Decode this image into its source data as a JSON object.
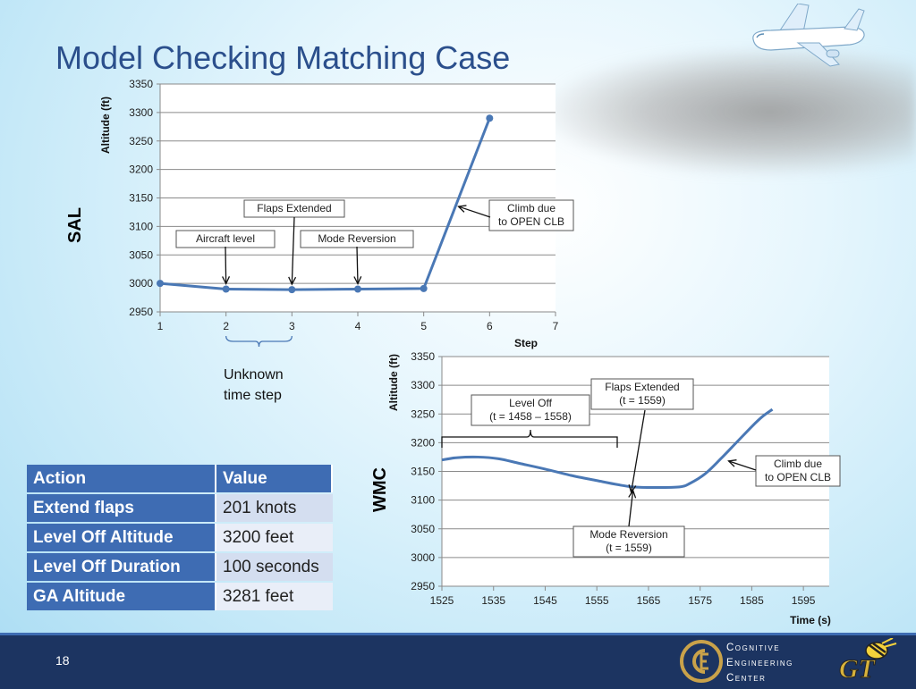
{
  "slide": {
    "title": "Model Checking Matching Case",
    "page_number": "18"
  },
  "logos": {
    "cec_lines": [
      "Cognitive",
      "Engineering",
      "Center"
    ],
    "gt": "GT"
  },
  "chart_data": [
    {
      "type": "line",
      "side_label": "SAL",
      "xlabel": "Step",
      "ylabel": "Altitude (ft)",
      "xlim": [
        1,
        7
      ],
      "ylim": [
        2950,
        3350
      ],
      "xticks": [
        1,
        2,
        3,
        4,
        5,
        6,
        7
      ],
      "yticks": [
        2950,
        3000,
        3050,
        3100,
        3150,
        3200,
        3250,
        3300,
        3350
      ],
      "grid": true,
      "series": [
        {
          "x": [
            1,
            2,
            3,
            4,
            5,
            6
          ],
          "y": [
            3000,
            2990,
            2989,
            2990,
            2991,
            3290
          ]
        }
      ],
      "annotations": [
        {
          "lines": [
            "Aircraft level"
          ],
          "at": {
            "x": 2,
            "y": 2990
          }
        },
        {
          "lines": [
            "Flaps Extended"
          ],
          "at": {
            "x": 3,
            "y": 2989
          }
        },
        {
          "lines": [
            "Mode Reversion"
          ],
          "at": {
            "x": 4,
            "y": 2990
          }
        },
        {
          "lines": [
            "Climb due",
            "to OPEN CLB"
          ],
          "at": {
            "x": 5.5,
            "y": 3135
          }
        }
      ],
      "brace_note": [
        "Unknown",
        "time step"
      ]
    },
    {
      "type": "line",
      "side_label": "WMC",
      "xlabel": "Time (s)",
      "ylabel": "Altitude (ft)",
      "xlim": [
        1525,
        1600
      ],
      "ylim": [
        2950,
        3350
      ],
      "xticks": [
        1525,
        1535,
        1545,
        1555,
        1565,
        1575,
        1585,
        1595
      ],
      "yticks": [
        2950,
        3000,
        3050,
        3100,
        3150,
        3200,
        3250,
        3300,
        3350
      ],
      "grid": true,
      "series": [
        {
          "x": [
            1525,
            1528,
            1532,
            1536,
            1540,
            1545,
            1550,
            1555,
            1559,
            1562,
            1566,
            1571,
            1573,
            1576,
            1579,
            1582,
            1585,
            1587,
            1589
          ],
          "y": [
            3170,
            3174,
            3175,
            3172,
            3164,
            3154,
            3143,
            3134,
            3127,
            3123,
            3122,
            3123,
            3129,
            3146,
            3172,
            3200,
            3228,
            3245,
            3258
          ]
        }
      ],
      "annotations": [
        {
          "lines": [
            "Level Off",
            "(t = 1458 – 1558)"
          ]
        },
        {
          "lines": [
            "Flaps Extended",
            "(t = 1559)"
          ],
          "at": {
            "x": 1562,
            "y": 3123
          }
        },
        {
          "lines": [
            "Mode Reversion",
            "(t = 1559)"
          ],
          "at": {
            "x": 1562,
            "y": 3123
          }
        },
        {
          "lines": [
            "Climb due",
            "to OPEN CLB"
          ],
          "at": {
            "x": 1580,
            "y": 3165
          }
        }
      ]
    }
  ],
  "table": {
    "headers": [
      "Action",
      "Value"
    ],
    "rows": [
      {
        "action": "Extend flaps",
        "value": "201 knots"
      },
      {
        "action": "Level Off Altitude",
        "value": "3200 feet"
      },
      {
        "action": "Level Off Duration",
        "value": "100 seconds"
      },
      {
        "action": "GA Altitude",
        "value": "3281 feet"
      }
    ]
  }
}
